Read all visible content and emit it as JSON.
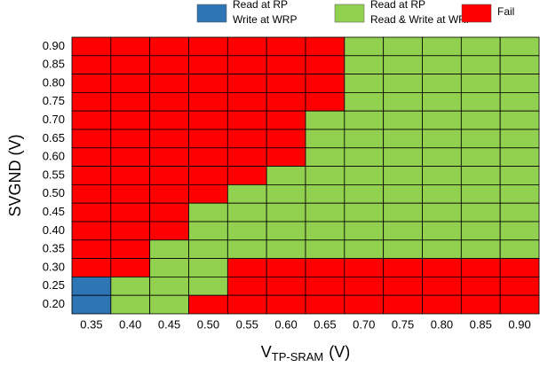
{
  "chart_data": {
    "type": "heatmap",
    "x_label": {
      "main": "V",
      "sub": "TP-SRAM",
      "unit": "(V)"
    },
    "y_label": "SVGND (V)",
    "categories": [
      "0.35",
      "0.40",
      "0.45",
      "0.50",
      "0.55",
      "0.60",
      "0.65",
      "0.70",
      "0.75",
      "0.80",
      "0.85",
      "0.90"
    ],
    "rows": [
      "0.90",
      "0.85",
      "0.80",
      "0.75",
      "0.70",
      "0.65",
      "0.60",
      "0.55",
      "0.50",
      "0.45",
      "0.40",
      "0.35",
      "0.30",
      "0.25",
      "0.20"
    ],
    "legend": [
      {
        "label": [
          "Read at RP",
          "Write at WRP"
        ],
        "color": "#2e75b6"
      },
      {
        "label": [
          "Read at RP",
          "Read & Write at WRP"
        ],
        "color": "#92d050"
      },
      {
        "label": [
          "Fail"
        ],
        "color": "#ff0000"
      }
    ],
    "values": [
      [
        2,
        2,
        2,
        2,
        2,
        2,
        2,
        1,
        1,
        1,
        1,
        1
      ],
      [
        2,
        2,
        2,
        2,
        2,
        2,
        2,
        1,
        1,
        1,
        1,
        1
      ],
      [
        2,
        2,
        2,
        2,
        2,
        2,
        2,
        1,
        1,
        1,
        1,
        1
      ],
      [
        2,
        2,
        2,
        2,
        2,
        2,
        2,
        1,
        1,
        1,
        1,
        1
      ],
      [
        2,
        2,
        2,
        2,
        2,
        2,
        1,
        1,
        1,
        1,
        1,
        1
      ],
      [
        2,
        2,
        2,
        2,
        2,
        2,
        1,
        1,
        1,
        1,
        1,
        1
      ],
      [
        2,
        2,
        2,
        2,
        2,
        2,
        1,
        1,
        1,
        1,
        1,
        1
      ],
      [
        2,
        2,
        2,
        2,
        2,
        1,
        1,
        1,
        1,
        1,
        1,
        1
      ],
      [
        2,
        2,
        2,
        2,
        1,
        1,
        1,
        1,
        1,
        1,
        1,
        1
      ],
      [
        2,
        2,
        2,
        1,
        1,
        1,
        1,
        1,
        1,
        1,
        1,
        1
      ],
      [
        2,
        2,
        2,
        1,
        1,
        1,
        1,
        1,
        1,
        1,
        1,
        1
      ],
      [
        2,
        2,
        1,
        1,
        1,
        1,
        1,
        1,
        1,
        1,
        1,
        1
      ],
      [
        2,
        2,
        1,
        1,
        2,
        2,
        2,
        2,
        2,
        2,
        2,
        2
      ],
      [
        0,
        1,
        1,
        1,
        2,
        2,
        2,
        2,
        2,
        2,
        2,
        2
      ],
      [
        0,
        1,
        1,
        2,
        2,
        2,
        2,
        2,
        2,
        2,
        2,
        2
      ]
    ]
  }
}
